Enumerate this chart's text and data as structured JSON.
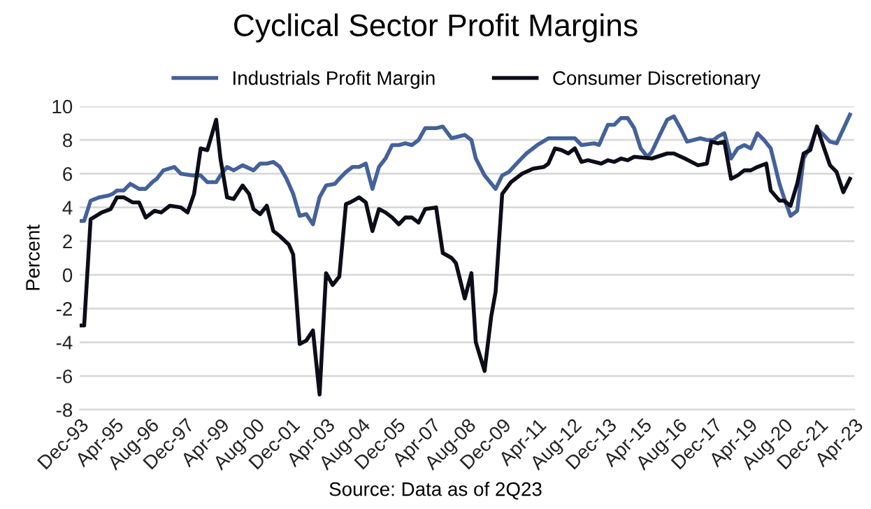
{
  "chart_data": {
    "type": "line",
    "title": "Cyclical Sector Profit Margins",
    "ylabel": "Percent",
    "annotations": [
      "Source: Data as of 2Q23"
    ],
    "series": [
      {
        "name": "Industrials Profit Margin",
        "color": "#44619a",
        "x": [
          "1993-12",
          "1994-02",
          "1994-05",
          "1994-09",
          "1995-01",
          "1995-03",
          "1995-05",
          "1995-08",
          "1995-11",
          "1996-03",
          "1996-06",
          "1996-09",
          "1996-11",
          "1997-02",
          "1997-07",
          "1997-10",
          "1998-03",
          "1998-07",
          "1998-10",
          "1999-02",
          "1999-04",
          "1999-07",
          "1999-10",
          "2000-02",
          "2000-07",
          "2000-10",
          "2001-01",
          "2001-04",
          "2001-07",
          "2001-10",
          "2002-01",
          "2002-04",
          "2002-07",
          "2002-10",
          "2003-01",
          "2003-04",
          "2003-08",
          "2003-10",
          "2004-01",
          "2004-04",
          "2004-07",
          "2004-10",
          "2005-01",
          "2005-04",
          "2005-07",
          "2005-10",
          "2006-01",
          "2006-04",
          "2006-07",
          "2006-10",
          "2007-01",
          "2007-06",
          "2007-09",
          "2008-01",
          "2008-07",
          "2008-10",
          "2008-12",
          "2009-04",
          "2009-09",
          "2009-12",
          "2010-03",
          "2010-08",
          "2010-11",
          "2011-04",
          "2011-09",
          "2012-09",
          "2012-12",
          "2013-06",
          "2013-08",
          "2013-12",
          "2014-03",
          "2014-06",
          "2014-09",
          "2014-12",
          "2015-03",
          "2015-06",
          "2015-08",
          "2015-12",
          "2016-03",
          "2016-06",
          "2016-09",
          "2016-12",
          "2017-06",
          "2017-09",
          "2017-12",
          "2018-02",
          "2018-05",
          "2018-08",
          "2018-11",
          "2019-02",
          "2019-05",
          "2019-08",
          "2019-11",
          "2020-02",
          "2020-06",
          "2020-08",
          "2020-11",
          "2021-02",
          "2021-05",
          "2021-08",
          "2021-11",
          "2022-02",
          "2022-05",
          "2022-08",
          "2023-02"
        ],
        "values": [
          3.2,
          3.2,
          4.4,
          4.6,
          4.7,
          4.8,
          5.0,
          5.0,
          5.4,
          5.1,
          5.1,
          5.5,
          5.7,
          6.2,
          6.4,
          6.0,
          5.9,
          5.9,
          5.5,
          5.5,
          5.9,
          6.4,
          6.2,
          6.5,
          6.2,
          6.6,
          6.6,
          6.7,
          6.4,
          5.7,
          4.8,
          3.5,
          3.6,
          3.0,
          4.6,
          5.3,
          5.4,
          5.7,
          6.1,
          6.4,
          6.4,
          6.6,
          5.1,
          6.4,
          6.9,
          7.7,
          7.7,
          7.8,
          7.7,
          8.0,
          8.7,
          8.7,
          8.8,
          8.1,
          8.3,
          8.0,
          6.9,
          5.9,
          5.1,
          5.9,
          6.1,
          6.8,
          7.2,
          7.7,
          8.1,
          8.1,
          7.7,
          7.8,
          7.7,
          8.9,
          8.9,
          9.3,
          9.3,
          8.7,
          7.5,
          7.0,
          7.3,
          8.4,
          9.2,
          9.4,
          8.7,
          7.9,
          8.1,
          8.0,
          8.0,
          8.2,
          8.4,
          6.9,
          7.5,
          7.7,
          7.5,
          8.4,
          8.0,
          7.5,
          5.4,
          4.6,
          3.5,
          3.8,
          6.9,
          7.6,
          8.7,
          8.3,
          7.9,
          7.8,
          9.5
        ]
      },
      {
        "name": "Consumer Discretionary",
        "color": "#0d0d1a",
        "x": [
          "1993-12",
          "1994-02",
          "1994-05",
          "1994-10",
          "1995-02",
          "1995-05",
          "1995-08",
          "1995-12",
          "1996-03",
          "1996-06",
          "1996-10",
          "1997-01",
          "1997-05",
          "1997-10",
          "1998-01",
          "1998-04",
          "1998-07",
          "1998-10",
          "1999-02",
          "1999-04",
          "1999-07",
          "1999-10",
          "2000-02",
          "2000-05",
          "2000-07",
          "2000-10",
          "2001-01",
          "2001-04",
          "2001-07",
          "2001-11",
          "2002-01",
          "2002-04",
          "2002-07",
          "2002-10",
          "2003-01",
          "2003-04",
          "2003-07",
          "2003-10",
          "2004-01",
          "2004-03",
          "2004-07",
          "2004-10",
          "2005-01",
          "2005-04",
          "2005-07",
          "2005-10",
          "2006-01",
          "2006-04",
          "2006-07",
          "2006-10",
          "2007-01",
          "2007-06",
          "2007-09",
          "2008-01",
          "2008-03",
          "2008-07",
          "2008-10",
          "2008-12",
          "2009-04",
          "2009-07",
          "2009-09",
          "2009-12",
          "2010-04",
          "2010-09",
          "2011-02",
          "2011-07",
          "2011-09",
          "2011-12",
          "2012-03",
          "2012-06",
          "2012-09",
          "2012-12",
          "2013-03",
          "2013-09",
          "2013-12",
          "2014-03",
          "2014-06",
          "2014-09",
          "2014-12",
          "2015-08",
          "2016-03",
          "2016-06",
          "2016-11",
          "2017-05",
          "2017-09",
          "2017-11",
          "2018-02",
          "2018-05",
          "2018-08",
          "2018-11",
          "2019-02",
          "2019-05",
          "2019-08",
          "2019-12",
          "2020-02",
          "2020-06",
          "2020-08",
          "2020-11",
          "2021-02",
          "2021-05",
          "2021-08",
          "2021-11",
          "2022-02",
          "2022-05",
          "2022-08",
          "2022-11",
          "2023-02"
        ],
        "values": [
          -3.0,
          -3.0,
          3.3,
          3.7,
          3.9,
          4.6,
          4.6,
          4.3,
          4.3,
          3.4,
          3.8,
          3.7,
          4.1,
          4.0,
          3.7,
          4.8,
          7.5,
          7.4,
          9.2,
          6.9,
          4.6,
          4.5,
          5.3,
          4.8,
          3.9,
          3.6,
          4.1,
          2.6,
          2.3,
          1.8,
          1.2,
          -4.1,
          -3.9,
          -3.3,
          -7.1,
          0.1,
          -0.6,
          -0.1,
          4.2,
          4.3,
          4.6,
          4.3,
          2.6,
          3.9,
          3.7,
          3.4,
          3.0,
          3.4,
          3.4,
          3.1,
          3.9,
          4.0,
          1.3,
          1.0,
          0.7,
          -1.4,
          0.1,
          -4.0,
          -5.7,
          -2.5,
          -1.0,
          4.8,
          5.5,
          6.0,
          6.3,
          6.4,
          6.6,
          7.5,
          7.4,
          7.2,
          7.5,
          6.7,
          6.8,
          6.6,
          6.8,
          6.7,
          6.9,
          6.8,
          7.0,
          6.9,
          7.2,
          7.2,
          6.9,
          6.5,
          6.6,
          7.9,
          7.8,
          7.9,
          5.7,
          5.9,
          6.2,
          6.2,
          6.4,
          6.6,
          5.0,
          4.4,
          4.4,
          4.1,
          5.4,
          7.2,
          7.4,
          8.8,
          7.6,
          6.5,
          6.1,
          4.9,
          5.7
        ]
      }
    ],
    "xlim": [
      "1993-12",
      "2023-04"
    ],
    "xticks": [
      {
        "value": "1993-12",
        "label": "Dec-93"
      },
      {
        "value": "1995-04",
        "label": "Apr-95"
      },
      {
        "value": "1996-08",
        "label": "Aug-96"
      },
      {
        "value": "1997-12",
        "label": "Dec-97"
      },
      {
        "value": "1999-04",
        "label": "Apr-99"
      },
      {
        "value": "2000-08",
        "label": "Aug-00"
      },
      {
        "value": "2001-12",
        "label": "Dec-01"
      },
      {
        "value": "2003-04",
        "label": "Apr-03"
      },
      {
        "value": "2004-08",
        "label": "Aug-04"
      },
      {
        "value": "2005-12",
        "label": "Dec-05"
      },
      {
        "value": "2007-04",
        "label": "Apr-07"
      },
      {
        "value": "2008-08",
        "label": "Aug-08"
      },
      {
        "value": "2009-12",
        "label": "Dec-09"
      },
      {
        "value": "2011-04",
        "label": "Apr-11"
      },
      {
        "value": "2012-08",
        "label": "Aug-12"
      },
      {
        "value": "2013-12",
        "label": "Dec-13"
      },
      {
        "value": "2015-04",
        "label": "Apr-15"
      },
      {
        "value": "2016-08",
        "label": "Aug-16"
      },
      {
        "value": "2017-12",
        "label": "Dec-17"
      },
      {
        "value": "2019-04",
        "label": "Apr-19"
      },
      {
        "value": "2020-08",
        "label": "Aug-20"
      },
      {
        "value": "2021-12",
        "label": "Dec-21"
      },
      {
        "value": "2023-04",
        "label": "Apr-23"
      }
    ],
    "ylim": [
      -8,
      10
    ],
    "yticks": [
      -8,
      -6,
      -4,
      -2,
      0,
      2,
      4,
      6,
      8,
      10
    ],
    "grid": "y",
    "legend": "top",
    "marker": "none",
    "line_style": "solid"
  }
}
